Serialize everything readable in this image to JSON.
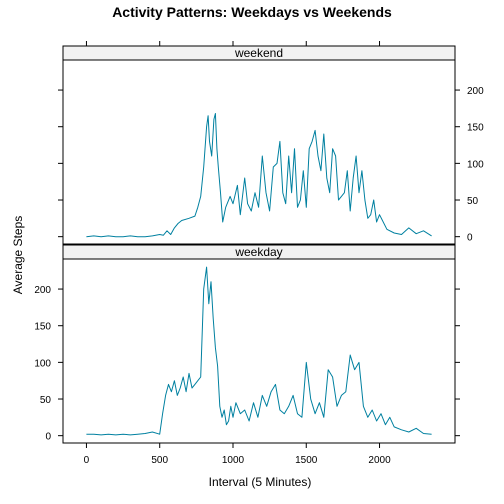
{
  "chart_data": {
    "type": "line",
    "title": "Activity Patterns: Weekdays vs Weekends",
    "xlabel": "Interval (5 Minutes)",
    "ylabel": "Average Steps",
    "xlim": [
      -160,
      2515
    ],
    "ylim": [
      -10,
      241
    ],
    "x_ticks": [
      0,
      500,
      1000,
      1500,
      2000
    ],
    "y_ticks": [
      0,
      50,
      100,
      150,
      200
    ],
    "line_color": "#0080a0",
    "panels": [
      {
        "name": "weekend",
        "x": [
          0,
          50,
          100,
          150,
          200,
          250,
          300,
          350,
          400,
          450,
          500,
          525,
          550,
          575,
          600,
          625,
          650,
          700,
          740,
          760,
          780,
          800,
          820,
          830,
          840,
          855,
          870,
          880,
          890,
          900,
          915,
          930,
          950,
          980,
          1000,
          1030,
          1050,
          1080,
          1100,
          1125,
          1150,
          1175,
          1200,
          1225,
          1250,
          1275,
          1300,
          1320,
          1340,
          1360,
          1380,
          1400,
          1420,
          1440,
          1460,
          1480,
          1500,
          1520,
          1540,
          1560,
          1580,
          1600,
          1620,
          1640,
          1660,
          1680,
          1700,
          1720,
          1740,
          1760,
          1780,
          1800,
          1820,
          1840,
          1860,
          1880,
          1900,
          1920,
          1940,
          1960,
          1980,
          2000,
          2050,
          2100,
          2150,
          2200,
          2250,
          2300,
          2355
        ],
        "y": [
          0,
          1,
          0,
          1,
          0,
          0,
          1,
          0,
          0,
          1,
          3,
          2,
          8,
          3,
          12,
          18,
          22,
          25,
          28,
          40,
          55,
          95,
          150,
          165,
          130,
          110,
          160,
          168,
          120,
          95,
          60,
          20,
          40,
          55,
          45,
          70,
          30,
          80,
          45,
          35,
          60,
          40,
          110,
          60,
          35,
          95,
          100,
          130,
          60,
          45,
          110,
          60,
          120,
          40,
          50,
          90,
          40,
          120,
          130,
          145,
          110,
          90,
          140,
          80,
          60,
          120,
          110,
          50,
          55,
          60,
          90,
          35,
          80,
          110,
          60,
          90,
          50,
          25,
          30,
          50,
          20,
          30,
          10,
          5,
          3,
          12,
          4,
          8,
          1
        ],
        "series": [
          {
            "values": []
          }
        ]
      },
      {
        "name": "weekday",
        "x": [
          0,
          50,
          100,
          150,
          200,
          250,
          300,
          350,
          400,
          450,
          500,
          520,
          540,
          560,
          580,
          600,
          620,
          640,
          660,
          680,
          700,
          720,
          740,
          760,
          780,
          800,
          820,
          835,
          850,
          865,
          880,
          895,
          910,
          925,
          940,
          955,
          970,
          985,
          1000,
          1020,
          1050,
          1080,
          1110,
          1140,
          1170,
          1200,
          1230,
          1260,
          1290,
          1320,
          1350,
          1380,
          1410,
          1440,
          1470,
          1500,
          1530,
          1560,
          1590,
          1620,
          1650,
          1680,
          1710,
          1740,
          1770,
          1800,
          1830,
          1860,
          1890,
          1920,
          1950,
          1980,
          2010,
          2040,
          2070,
          2100,
          2150,
          2200,
          2250,
          2300,
          2355
        ],
        "y": [
          2,
          2,
          1,
          2,
          1,
          2,
          1,
          2,
          3,
          5,
          2,
          30,
          55,
          70,
          60,
          75,
          55,
          65,
          80,
          60,
          85,
          65,
          70,
          75,
          80,
          200,
          230,
          180,
          210,
          160,
          120,
          95,
          40,
          25,
          35,
          15,
          20,
          40,
          25,
          45,
          30,
          35,
          20,
          45,
          25,
          55,
          40,
          60,
          70,
          35,
          30,
          40,
          55,
          30,
          25,
          100,
          50,
          30,
          45,
          25,
          90,
          80,
          40,
          55,
          60,
          110,
          90,
          100,
          40,
          25,
          35,
          20,
          30,
          15,
          25,
          12,
          8,
          5,
          10,
          3,
          2
        ]
      }
    ]
  }
}
